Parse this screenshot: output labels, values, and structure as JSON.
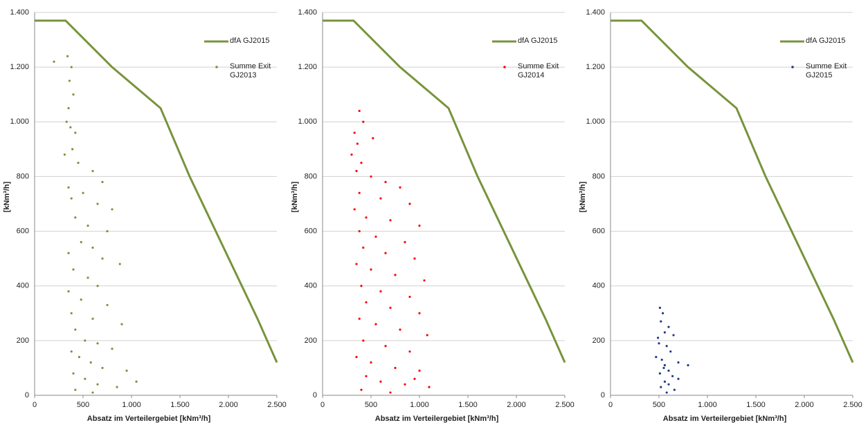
{
  "chart_data": [
    {
      "type": "scatter",
      "xlabel": "Absatz im Verteilergebiet [kNm³/h]",
      "ylabel": "[kNm³/h]",
      "xlim": [
        0,
        2500
      ],
      "ylim": [
        0,
        1400
      ],
      "xticks": [
        0,
        500,
        {
          "value": 1000,
          "label": "1.000"
        },
        {
          "value": 1500,
          "label": "1.500"
        },
        {
          "value": 2000,
          "label": "2.000"
        },
        {
          "value": 2500,
          "label": "2.500"
        }
      ],
      "yticks": [
        0,
        200,
        400,
        600,
        800,
        {
          "value": 1000,
          "label": "1.000"
        },
        {
          "value": 1200,
          "label": "1.200"
        },
        {
          "value": 1400,
          "label": "1.400"
        }
      ],
      "grid": true,
      "series": [
        {
          "name": "dfA GJ2015",
          "type": "line",
          "color": "#77933c",
          "x": [
            0,
            320,
            800,
            1300,
            1600,
            2300,
            2500
          ],
          "values": [
            1370,
            1370,
            1200,
            1050,
            800,
            280,
            120
          ]
        },
        {
          "name": "Summe Exit GJ2013",
          "type": "scatter",
          "color": "#77933c",
          "x": [
            340,
            380,
            360,
            400,
            350,
            330,
            370,
            420,
            390,
            310,
            450,
            600,
            700,
            350,
            500,
            380,
            650,
            800,
            420,
            550,
            750,
            480,
            600,
            350,
            700,
            880,
            400,
            550,
            650,
            350,
            480,
            750,
            380,
            600,
            900,
            420,
            520,
            650,
            800,
            380,
            460,
            580,
            700,
            950,
            400,
            520,
            650,
            850,
            1050,
            420,
            600,
            200
          ],
          "values": [
            1240,
            1200,
            1150,
            1100,
            1050,
            1000,
            980,
            960,
            900,
            880,
            850,
            820,
            780,
            760,
            740,
            720,
            700,
            680,
            650,
            620,
            600,
            560,
            540,
            520,
            500,
            480,
            460,
            430,
            400,
            380,
            350,
            330,
            300,
            280,
            260,
            240,
            200,
            190,
            170,
            160,
            140,
            120,
            100,
            90,
            80,
            60,
            40,
            30,
            50,
            20,
            10,
            1220
          ]
        }
      ]
    },
    {
      "type": "scatter",
      "xlabel": "Absatz im Verteilergebiet [kNm³/h]",
      "ylabel": "[kNm³/h]",
      "xlim": [
        0,
        2500
      ],
      "ylim": [
        0,
        1400
      ],
      "xticks": [
        0,
        500,
        {
          "value": 1000,
          "label": "1.000"
        },
        {
          "value": 1500,
          "label": "1.500"
        },
        {
          "value": 2000,
          "label": "2.000"
        },
        {
          "value": 2500,
          "label": "2.500"
        }
      ],
      "yticks": [
        0,
        200,
        400,
        600,
        800,
        {
          "value": 1000,
          "label": "1.000"
        },
        {
          "value": 1200,
          "label": "1.200"
        },
        {
          "value": 1400,
          "label": "1.400"
        }
      ],
      "grid": true,
      "series": [
        {
          "name": "dfA GJ2015",
          "type": "line",
          "color": "#77933c",
          "x": [
            0,
            320,
            800,
            1300,
            1600,
            2300,
            2500
          ],
          "values": [
            1370,
            1370,
            1200,
            1050,
            800,
            280,
            120
          ]
        },
        {
          "name": "Summe Exit GJ2014",
          "type": "scatter",
          "color": "#ff0000",
          "x": [
            380,
            420,
            330,
            360,
            300,
            400,
            350,
            500,
            650,
            800,
            380,
            600,
            900,
            330,
            450,
            700,
            1000,
            380,
            550,
            850,
            420,
            650,
            950,
            350,
            500,
            750,
            1050,
            400,
            600,
            900,
            450,
            700,
            1000,
            380,
            550,
            800,
            1080,
            420,
            650,
            900,
            350,
            500,
            750,
            1000,
            450,
            600,
            850,
            1100,
            400,
            700,
            950,
            520
          ],
          "values": [
            1040,
            1000,
            960,
            920,
            880,
            850,
            820,
            800,
            780,
            760,
            740,
            720,
            700,
            680,
            650,
            640,
            620,
            600,
            580,
            560,
            540,
            520,
            500,
            480,
            460,
            440,
            420,
            400,
            380,
            360,
            340,
            320,
            300,
            280,
            260,
            240,
            220,
            200,
            180,
            160,
            140,
            120,
            100,
            90,
            70,
            50,
            40,
            30,
            20,
            10,
            60,
            940
          ]
        }
      ]
    },
    {
      "type": "scatter",
      "xlabel": "Absatz im Verteilergebiet [kNm³/h]",
      "ylabel": "[kNm³/h]",
      "xlim": [
        0,
        2500
      ],
      "ylim": [
        0,
        1400
      ],
      "xticks": [
        0,
        500,
        {
          "value": 1000,
          "label": "1.000"
        },
        {
          "value": 1500,
          "label": "1.500"
        },
        {
          "value": 2000,
          "label": "2.000"
        },
        {
          "value": 2500,
          "label": "2.500"
        }
      ],
      "yticks": [
        0,
        200,
        400,
        600,
        800,
        {
          "value": 1000,
          "label": "1.000"
        },
        {
          "value": 1200,
          "label": "1.200"
        },
        {
          "value": 1400,
          "label": "1.400"
        }
      ],
      "grid": true,
      "series": [
        {
          "name": "dfA GJ2015",
          "type": "line",
          "color": "#77933c",
          "x": [
            0,
            320,
            800,
            1300,
            1600,
            2300,
            2500
          ],
          "values": [
            1370,
            1370,
            1200,
            1050,
            800,
            280,
            120
          ]
        },
        {
          "name": "Summe Exit GJ2015",
          "type": "scatter",
          "color": "#1f3a8a",
          "x": [
            510,
            540,
            520,
            600,
            560,
            650,
            500,
            580,
            620,
            470,
            530,
            700,
            800,
            550,
            600,
            510,
            640,
            700,
            560,
            600,
            520,
            660,
            580,
            490,
            560
          ],
          "values": [
            320,
            300,
            270,
            250,
            230,
            220,
            190,
            180,
            160,
            140,
            130,
            120,
            110,
            100,
            90,
            80,
            70,
            60,
            50,
            40,
            30,
            20,
            10,
            210,
            110
          ]
        }
      ]
    }
  ]
}
